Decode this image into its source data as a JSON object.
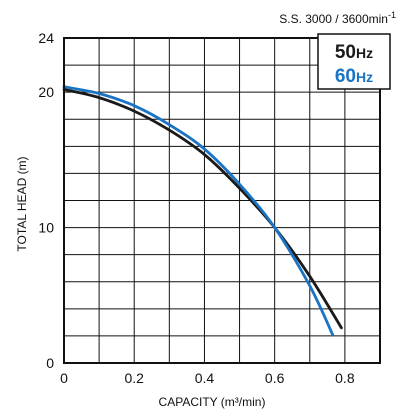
{
  "header_note": {
    "prefix": "S.S. 3000 / 3600min",
    "superscript": "-1"
  },
  "chart_data": {
    "type": "line",
    "xlabel": "CAPACITY (m³/min)",
    "ylabel": "TOTAL HEAD (m)",
    "xlim": [
      0,
      0.9
    ],
    "ylim": [
      0,
      24
    ],
    "x_ticks": [
      "0",
      "0.2",
      "0.4",
      "0.6",
      "0.8"
    ],
    "y_ticks": [
      "0",
      "10",
      "20",
      "24"
    ],
    "grid": true,
    "legend_position": "top-right",
    "series": [
      {
        "name": "50Hz",
        "color": "#1a1a1a",
        "points": [
          [
            0,
            20.2
          ],
          [
            0.1,
            19.6
          ],
          [
            0.2,
            18.6
          ],
          [
            0.3,
            17.2
          ],
          [
            0.4,
            15.4
          ],
          [
            0.5,
            12.9
          ],
          [
            0.6,
            10.0
          ],
          [
            0.7,
            6.4
          ],
          [
            0.79,
            2.6
          ]
        ]
      },
      {
        "name": "60Hz",
        "color": "#1a74c4",
        "points": [
          [
            0,
            20.4
          ],
          [
            0.1,
            19.9
          ],
          [
            0.2,
            19.0
          ],
          [
            0.3,
            17.6
          ],
          [
            0.4,
            15.8
          ],
          [
            0.5,
            13.2
          ],
          [
            0.6,
            10.0
          ],
          [
            0.7,
            5.7
          ],
          [
            0.765,
            2.1
          ]
        ]
      }
    ]
  }
}
